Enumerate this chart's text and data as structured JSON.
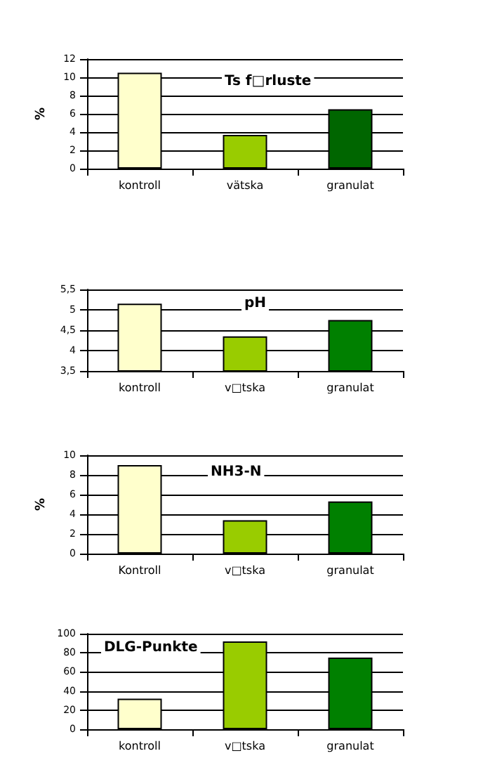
{
  "chart_data": [
    {
      "type": "bar",
      "title": "Ts f□rluste",
      "ylabel": "%",
      "categories": [
        "kontroll",
        "vätska",
        "granulat"
      ],
      "values": [
        10.5,
        3.7,
        6.5
      ],
      "colors": [
        "#ffffcc",
        "#99cc00",
        "#006600"
      ],
      "ylim": [
        0,
        12
      ],
      "yticks": [
        0,
        2,
        4,
        6,
        8,
        10,
        12
      ],
      "grid": "y"
    },
    {
      "type": "bar",
      "title": "pH",
      "categories": [
        "kontroll",
        "v□tska",
        "granulat"
      ],
      "values": [
        5.15,
        4.35,
        4.75
      ],
      "colors": [
        "#ffffcc",
        "#99cc00",
        "#008000"
      ],
      "ylim": [
        3.5,
        5.5
      ],
      "yticks": [
        {
          "value": 3.5,
          "label": "3,5"
        },
        4,
        {
          "value": 4.5,
          "label": "4,5"
        },
        5,
        {
          "value": 5.5,
          "label": "5,5"
        }
      ],
      "grid": "y"
    },
    {
      "type": "bar",
      "title": "NH3-N",
      "ylabel": "%",
      "categories": [
        "Kontroll",
        "v□tska",
        "granulat"
      ],
      "values": [
        9,
        3.4,
        5.3
      ],
      "colors": [
        "#ffffcc",
        "#99cc00",
        "#008000"
      ],
      "ylim": [
        0,
        10
      ],
      "yticks": [
        0,
        2,
        4,
        6,
        8,
        10
      ],
      "grid": "y"
    },
    {
      "type": "bar",
      "title": "DLG-Punkte",
      "categories": [
        "kontroll",
        "v□tska",
        "granulat"
      ],
      "values": [
        32,
        92,
        75
      ],
      "colors": [
        "#ffffcc",
        "#99cc00",
        "#008000"
      ],
      "ylim": [
        0,
        100
      ],
      "yticks": [
        0,
        20,
        40,
        60,
        80,
        100
      ],
      "grid": "y"
    }
  ]
}
